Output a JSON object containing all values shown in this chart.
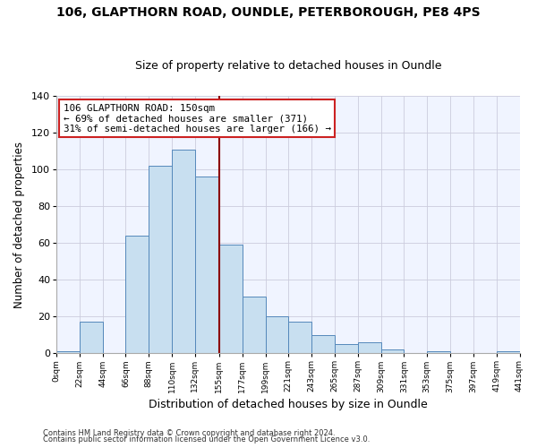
{
  "title": "106, GLAPTHORN ROAD, OUNDLE, PETERBOROUGH, PE8 4PS",
  "subtitle": "Size of property relative to detached houses in Oundle",
  "xlabel": "Distribution of detached houses by size in Oundle",
  "ylabel": "Number of detached properties",
  "bar_color": "#c8dff0",
  "bar_edge_color": "#5588bb",
  "bin_edges": [
    0,
    22,
    44,
    66,
    88,
    110,
    132,
    155,
    177,
    199,
    221,
    243,
    265,
    287,
    309,
    331,
    353,
    375,
    397,
    419,
    441
  ],
  "bin_labels": [
    "0sqm",
    "22sqm",
    "44sqm",
    "66sqm",
    "88sqm",
    "110sqm",
    "132sqm",
    "155sqm",
    "177sqm",
    "199sqm",
    "221sqm",
    "243sqm",
    "265sqm",
    "287sqm",
    "309sqm",
    "331sqm",
    "353sqm",
    "375sqm",
    "397sqm",
    "419sqm",
    "441sqm"
  ],
  "counts": [
    1,
    17,
    0,
    64,
    102,
    111,
    96,
    59,
    31,
    20,
    17,
    10,
    5,
    6,
    2,
    0,
    1,
    0,
    0,
    1
  ],
  "vline_x": 155,
  "vline_color": "#8b0000",
  "annotation_line1": "106 GLAPTHORN ROAD: 150sqm",
  "annotation_line2": "← 69% of detached houses are smaller (371)",
  "annotation_line3": "31% of semi-detached houses are larger (166) →",
  "annotation_box_color": "#ffffff",
  "annotation_box_edge": "#cc2222",
  "footer1": "Contains HM Land Registry data © Crown copyright and database right 2024.",
  "footer2": "Contains public sector information licensed under the Open Government Licence v3.0.",
  "bg_color": "#ffffff",
  "plot_bg_color": "#f0f4ff",
  "grid_color": "#ccccdd",
  "ylim": [
    0,
    140
  ],
  "xlim": [
    0,
    441
  ],
  "title_fontsize": 10,
  "subtitle_fontsize": 9
}
